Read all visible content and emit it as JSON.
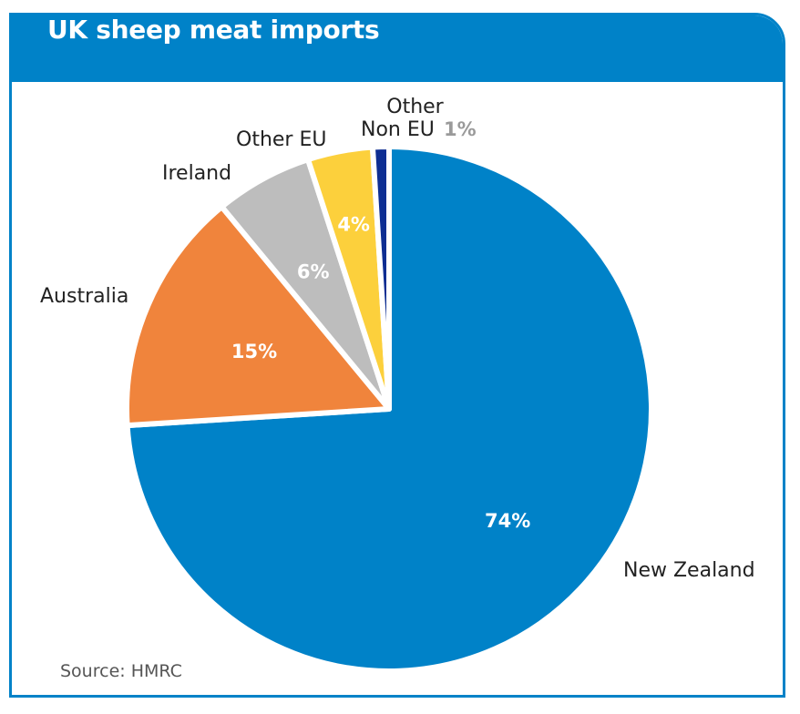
{
  "chart_data": {
    "type": "pie",
    "title": "UK sheep meat imports",
    "categories": [
      "New Zealand",
      "Australia",
      "Ireland",
      "Other EU",
      "Other Non EU"
    ],
    "values": [
      74,
      15,
      6,
      4,
      1
    ],
    "value_labels": [
      "74%",
      "15%",
      "6%",
      "4%",
      "1%"
    ],
    "colors": [
      "#0082c8",
      "#f0843c",
      "#bdbdbd",
      "#fcd03c",
      "#0e2e92"
    ],
    "source": "Source: HMRC"
  }
}
